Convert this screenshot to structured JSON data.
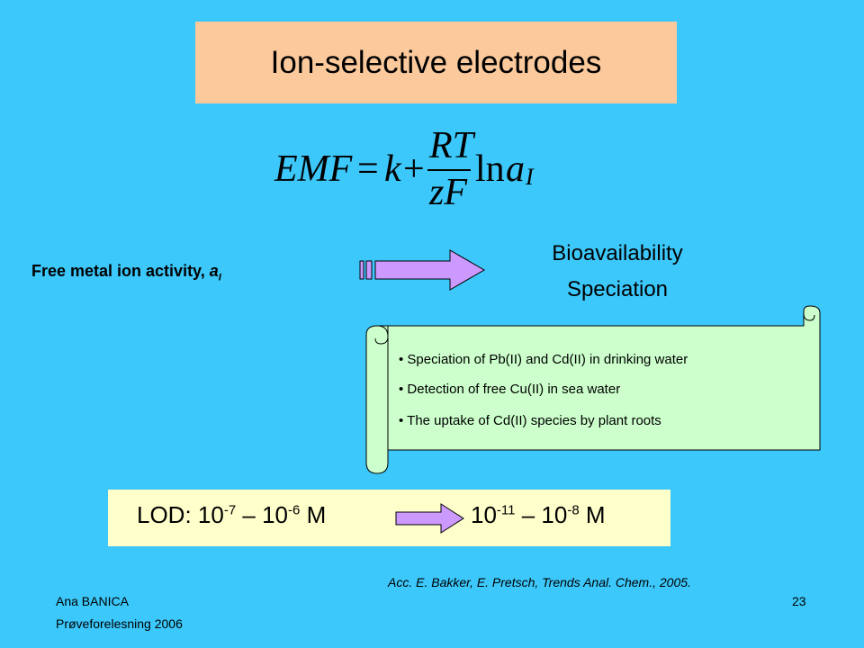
{
  "title": "Ion-selective electrodes",
  "equation": {
    "lhs": "EMF",
    "eq": "=",
    "k": "k",
    "plus": "+",
    "numerator": "RT",
    "denominator": "zF",
    "ln": "ln",
    "a": "a",
    "sub": "I"
  },
  "activity": {
    "text": "Free metal ion activity, ",
    "a": "a",
    "sub": "I"
  },
  "outcomes": [
    "Bioavailability",
    "Speciation"
  ],
  "scroll_items": [
    "Speciation of Pb(II) and Cd(II) in drinking water",
    "Detection of free Cu(II) in sea water",
    "The uptake of Cd(II) species by plant roots"
  ],
  "lod": {
    "from": {
      "base1": "LOD: 10",
      "exp1": "-7",
      "sep": " – 10",
      "exp2": "-6",
      "unit": " M"
    },
    "to": {
      "base1": "10",
      "exp1": "-11",
      "sep": " – 10",
      "exp2": "-8",
      "unit": " M"
    }
  },
  "reference": "Acc. E. Bakker, E. Pretsch, Trends Anal. Chem., 2005.",
  "footer": {
    "author": "Ana BANICA",
    "event": "Prøveforelesning 2006",
    "page": "23"
  }
}
